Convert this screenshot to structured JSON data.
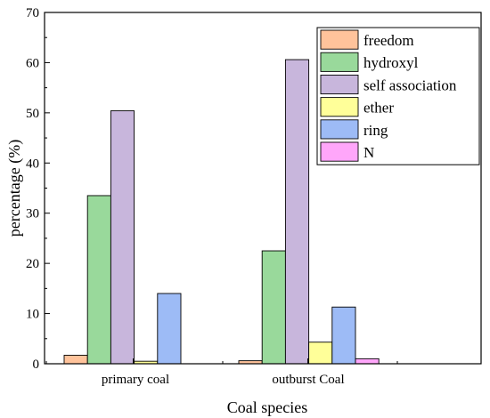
{
  "chart_data": {
    "type": "bar",
    "categories": [
      "primary coal",
      "outburst Coal"
    ],
    "series": [
      {
        "name": "freedom",
        "color": "#FFC39B",
        "values": [
          1.7,
          0.6
        ]
      },
      {
        "name": "hydroxyl",
        "color": "#99D99B",
        "values": [
          33.5,
          22.5
        ]
      },
      {
        "name": "self association",
        "color": "#C8B6DC",
        "values": [
          50.4,
          60.6
        ]
      },
      {
        "name": "ether",
        "color": "#FFFF99",
        "values": [
          0.5,
          4.3
        ]
      },
      {
        "name": "ring",
        "color": "#9DBBF6",
        "values": [
          14.0,
          11.3
        ]
      },
      {
        "name": "N",
        "color": "#FFA6FA",
        "values": [
          0.0,
          1.0
        ]
      }
    ],
    "xlabel": "Coal species",
    "ylabel": "percentage (%)",
    "ylim": [
      0,
      70
    ],
    "yticks": [
      "0",
      "10",
      "20",
      "30",
      "40",
      "50",
      "60",
      "70"
    ],
    "legend_position": "top-right",
    "grid": false
  }
}
